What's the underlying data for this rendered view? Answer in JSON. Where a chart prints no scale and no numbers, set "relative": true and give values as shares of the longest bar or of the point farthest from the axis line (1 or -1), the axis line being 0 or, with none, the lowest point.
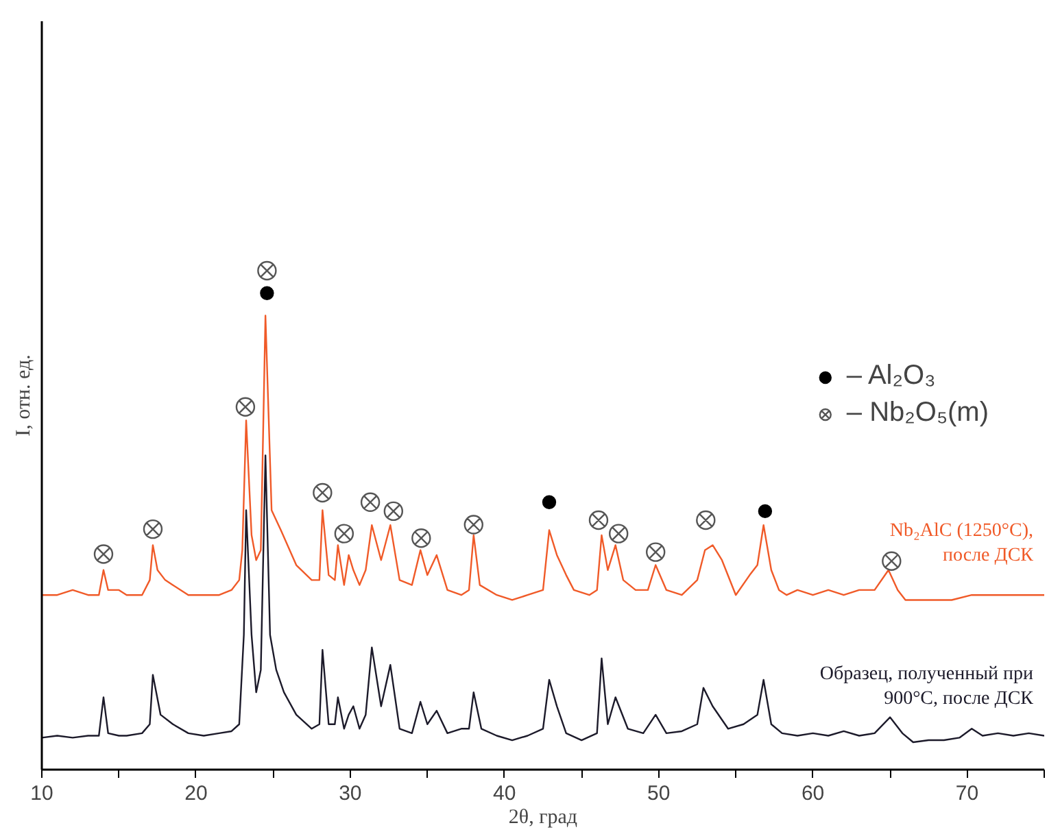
{
  "chart_data": {
    "type": "line",
    "xlabel": "2θ, град",
    "ylabel": "I, отн. ед.",
    "relative": true,
    "legend": "right",
    "xlim": [
      10,
      75
    ],
    "xticks": [
      10,
      {
        "value": 15,
        "label": null
      },
      20,
      {
        "value": 25,
        "label": null
      },
      30,
      {
        "value": 35,
        "label": null
      },
      40,
      {
        "value": 45,
        "label": null
      },
      50,
      {
        "value": 55,
        "label": null
      },
      60,
      {
        "value": 65,
        "label": null
      },
      70,
      {
        "value": 75,
        "label": null
      }
    ],
    "series": [
      {
        "name": "Nb₂AlC (1250°C),\nпосле ДСК",
        "color": "#f05a28",
        "x": [
          10,
          11,
          12,
          13,
          13.7,
          14.0,
          14.3,
          15.0,
          15.5,
          16.5,
          17.0,
          17.2,
          17.5,
          18.0,
          18.5,
          19.5,
          20.5,
          21.5,
          22.3,
          22.8,
          23.0,
          23.25,
          23.6,
          23.9,
          24.2,
          24.5,
          24.9,
          25.5,
          26.5,
          27.5,
          28.0,
          28.2,
          28.6,
          29.0,
          29.2,
          29.6,
          29.9,
          30.2,
          30.6,
          31.0,
          31.4,
          32.0,
          32.6,
          33.2,
          34.0,
          34.55,
          35.0,
          35.6,
          36.3,
          37.2,
          37.7,
          38.0,
          38.4,
          39.5,
          40.5,
          41.5,
          42.5,
          42.9,
          43.4,
          44.0,
          44.5,
          45.5,
          46.0,
          46.3,
          46.7,
          47.2,
          47.7,
          48.5,
          49.3,
          49.8,
          50.5,
          51.5,
          52.5,
          53.0,
          53.5,
          54.1,
          55.0,
          55.9,
          56.4,
          56.8,
          57.3,
          57.8,
          58.3,
          59.0,
          60.0,
          61.0,
          62.0,
          63.0,
          64.0,
          64.9,
          65.5,
          66.0,
          67.0,
          68.0,
          69.0,
          70.3,
          71.0,
          72.0,
          73.0,
          74.0,
          75.0
        ],
        "values": [
          0.35,
          0.35,
          0.36,
          0.35,
          0.35,
          0.4,
          0.36,
          0.36,
          0.35,
          0.35,
          0.38,
          0.45,
          0.4,
          0.38,
          0.37,
          0.35,
          0.35,
          0.35,
          0.36,
          0.38,
          0.44,
          0.7,
          0.47,
          0.42,
          0.44,
          0.91,
          0.52,
          0.48,
          0.41,
          0.38,
          0.38,
          0.52,
          0.39,
          0.38,
          0.45,
          0.37,
          0.43,
          0.4,
          0.37,
          0.4,
          0.49,
          0.42,
          0.49,
          0.38,
          0.37,
          0.44,
          0.39,
          0.43,
          0.36,
          0.35,
          0.36,
          0.47,
          0.37,
          0.35,
          0.34,
          0.35,
          0.36,
          0.48,
          0.43,
          0.39,
          0.36,
          0.35,
          0.36,
          0.47,
          0.4,
          0.45,
          0.38,
          0.36,
          0.36,
          0.41,
          0.36,
          0.35,
          0.38,
          0.44,
          0.45,
          0.42,
          0.35,
          0.39,
          0.41,
          0.49,
          0.4,
          0.36,
          0.35,
          0.36,
          0.35,
          0.36,
          0.35,
          0.36,
          0.36,
          0.4,
          0.36,
          0.34,
          0.34,
          0.34,
          0.34,
          0.35,
          0.35,
          0.35,
          0.35,
          0.35,
          0.35
        ]
      },
      {
        "name": "Образец, полученный при\n900°C, после ДСК",
        "color": "#1c1a2a",
        "x": [
          10,
          11,
          12,
          13,
          13.7,
          14.0,
          14.3,
          15.0,
          15.5,
          16.5,
          17.0,
          17.2,
          17.7,
          18.5,
          19.5,
          20.5,
          21.5,
          22.3,
          22.8,
          23.1,
          23.25,
          23.6,
          23.9,
          24.2,
          24.5,
          24.8,
          25.2,
          25.7,
          26.5,
          27.5,
          28.0,
          28.2,
          28.6,
          29.0,
          29.2,
          29.6,
          29.9,
          30.2,
          30.6,
          31.0,
          31.4,
          32.0,
          32.6,
          33.2,
          34.0,
          34.55,
          35.0,
          35.6,
          36.3,
          37.2,
          37.7,
          38.0,
          38.5,
          39.5,
          40.5,
          41.5,
          42.5,
          42.9,
          43.4,
          44.0,
          45.0,
          46.0,
          46.3,
          46.7,
          47.2,
          48.0,
          49.0,
          49.8,
          50.5,
          51.5,
          52.5,
          52.9,
          53.5,
          54.5,
          55.5,
          56.4,
          56.8,
          57.3,
          58.0,
          59.0,
          60.0,
          61.0,
          62.0,
          63.0,
          64.0,
          65.0,
          65.8,
          66.5,
          67.5,
          68.5,
          69.5,
          70.3,
          71.0,
          72.0,
          73.0,
          74.0,
          75.0
        ],
        "values": [
          0.064,
          0.068,
          0.064,
          0.068,
          0.068,
          0.145,
          0.073,
          0.068,
          0.068,
          0.073,
          0.091,
          0.19,
          0.11,
          0.091,
          0.073,
          0.068,
          0.073,
          0.077,
          0.091,
          0.27,
          0.52,
          0.27,
          0.155,
          0.2,
          0.63,
          0.27,
          0.2,
          0.155,
          0.11,
          0.082,
          0.091,
          0.24,
          0.091,
          0.091,
          0.145,
          0.082,
          0.11,
          0.127,
          0.082,
          0.11,
          0.245,
          0.127,
          0.21,
          0.082,
          0.073,
          0.136,
          0.091,
          0.118,
          0.073,
          0.082,
          0.082,
          0.155,
          0.082,
          0.068,
          0.059,
          0.068,
          0.082,
          0.18,
          0.127,
          0.073,
          0.059,
          0.073,
          0.223,
          0.091,
          0.145,
          0.082,
          0.073,
          0.11,
          0.073,
          0.077,
          0.091,
          0.164,
          0.127,
          0.082,
          0.091,
          0.11,
          0.18,
          0.091,
          0.073,
          0.068,
          0.073,
          0.068,
          0.077,
          0.068,
          0.073,
          0.105,
          0.073,
          0.055,
          0.059,
          0.059,
          0.064,
          0.082,
          0.068,
          0.073,
          0.068,
          0.073,
          0.068
        ]
      },
      {
        "type": "scatter",
        "name": "– Al₂O₃",
        "color": "#000000",
        "marker": "circle",
        "x": [
          24.6,
          42.9,
          56.9
        ],
        "values": [
          0.955,
          0.536,
          0.518
        ]
      },
      {
        "type": "scatter",
        "name": "– Nb₂O₅(m)",
        "color": "#555555",
        "marker": "cross",
        "x": [
          14.0,
          17.2,
          23.2,
          24.6,
          28.2,
          29.6,
          31.3,
          32.8,
          34.6,
          38.0,
          46.1,
          47.4,
          49.8,
          53.05,
          65.1
        ],
        "values": [
          0.432,
          0.482,
          0.727,
          1.0,
          0.555,
          0.473,
          0.536,
          0.518,
          0.464,
          0.491,
          0.5,
          0.473,
          0.436,
          0.5,
          0.418
        ]
      }
    ]
  }
}
